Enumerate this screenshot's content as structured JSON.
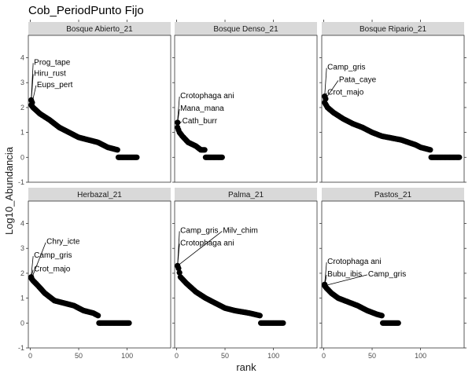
{
  "chart_data": {
    "type": "scatter",
    "title": "Cob_PeriodPunto Fijo",
    "xlabel": "rank",
    "ylabel": "Log10_Abundancia",
    "xlim": [
      -2,
      145
    ],
    "ylim": [
      -1,
      4.9
    ],
    "x_ticks": [
      "0",
      "50",
      "100"
    ],
    "x_tick_values": [
      0,
      50,
      100
    ],
    "y_ticks": [
      "-1",
      "0",
      "1",
      "2",
      "3",
      "4"
    ],
    "y_tick_values": [
      -1,
      0,
      1,
      2,
      3,
      4
    ],
    "point_color": "#000000",
    "panels": [
      {
        "name": "Bosque Abierto_21",
        "n_species": 110,
        "curve": [
          [
            1,
            2.1
          ],
          [
            3,
            2.0
          ],
          [
            10,
            1.75
          ],
          [
            20,
            1.5
          ],
          [
            30,
            1.2
          ],
          [
            40,
            1.0
          ],
          [
            50,
            0.8
          ],
          [
            60,
            0.7
          ],
          [
            70,
            0.6
          ],
          [
            80,
            0.4
          ],
          [
            90,
            0.3
          ],
          [
            91,
            0.0
          ],
          [
            110,
            0.0
          ]
        ],
        "top_points": [
          [
            1,
            2.3
          ],
          [
            2,
            2.2
          ]
        ],
        "labels": [
          {
            "text": "Prog_tape",
            "x": 3,
            "y": 3.85,
            "px": 1,
            "py": 2.3
          },
          {
            "text": "Hiru_rust",
            "x": 3,
            "y": 3.4,
            "px": 1,
            "py": 2.25
          },
          {
            "text": "Eups_pert",
            "x": 6,
            "y": 2.95,
            "px": 2,
            "py": 2.2
          }
        ]
      },
      {
        "name": "Bosque Denso_21",
        "n_species": 47,
        "curve": [
          [
            1,
            1.2
          ],
          [
            3,
            1.0
          ],
          [
            6,
            0.85
          ],
          [
            12,
            0.6
          ],
          [
            20,
            0.45
          ],
          [
            25,
            0.3
          ],
          [
            29,
            0.3
          ],
          [
            30,
            0.0
          ],
          [
            47,
            0.0
          ]
        ],
        "top_points": [
          [
            1,
            1.4
          ]
        ],
        "labels": [
          {
            "text": "Crotophaga ani",
            "x": 3,
            "y": 2.5,
            "px": 1,
            "py": 1.45
          },
          {
            "text": "Mana_mana",
            "x": 3,
            "y": 2.0,
            "px": 1,
            "py": 1.4
          },
          {
            "text": "Cath_burr",
            "x": 5,
            "y": 1.5,
            "px": 2,
            "py": 1.3
          }
        ]
      },
      {
        "name": "Bosque Ripario_21",
        "n_species": 140,
        "curve": [
          [
            1,
            2.2
          ],
          [
            4,
            2.0
          ],
          [
            10,
            1.8
          ],
          [
            20,
            1.55
          ],
          [
            30,
            1.35
          ],
          [
            40,
            1.2
          ],
          [
            50,
            1.0
          ],
          [
            60,
            0.85
          ],
          [
            80,
            0.7
          ],
          [
            95,
            0.5
          ],
          [
            100,
            0.4
          ],
          [
            110,
            0.3
          ],
          [
            111,
            0.0
          ],
          [
            140,
            0.0
          ]
        ],
        "top_points": [
          [
            1,
            2.45
          ],
          [
            2,
            2.35
          ]
        ],
        "labels": [
          {
            "text": "Camp_gris",
            "x": 3,
            "y": 3.65,
            "px": 1,
            "py": 2.45
          },
          {
            "text": "Pata_caye",
            "x": 15,
            "y": 3.15,
            "px": 2,
            "py": 2.35
          },
          {
            "text": "Crot_majo",
            "x": 3,
            "y": 2.65,
            "px": 2,
            "py": 2.3
          }
        ]
      },
      {
        "name": "Herbazal_21",
        "n_species": 102,
        "curve": [
          [
            1,
            1.8
          ],
          [
            3,
            1.7
          ],
          [
            8,
            1.5
          ],
          [
            15,
            1.2
          ],
          [
            25,
            0.9
          ],
          [
            35,
            0.8
          ],
          [
            45,
            0.7
          ],
          [
            55,
            0.5
          ],
          [
            65,
            0.4
          ],
          [
            70,
            0.3
          ],
          [
            71,
            0.0
          ],
          [
            102,
            0.0
          ]
        ],
        "top_points": [
          [
            1,
            1.85
          ]
        ],
        "labels": [
          {
            "text": "Chry_icte",
            "x": 16,
            "y": 3.3,
            "px": 2,
            "py": 1.85
          },
          {
            "text": "Camp_gris",
            "x": 3,
            "y": 2.75,
            "px": 1,
            "py": 1.9
          },
          {
            "text": "Crot_majo",
            "x": 3,
            "y": 2.2,
            "px": 1,
            "py": 1.85
          }
        ]
      },
      {
        "name": "Palma_21",
        "n_species": 110,
        "curve": [
          [
            1,
            2.3
          ],
          [
            2,
            2.2
          ],
          [
            4,
            1.85
          ],
          [
            10,
            1.6
          ],
          [
            20,
            1.25
          ],
          [
            30,
            1.0
          ],
          [
            40,
            0.8
          ],
          [
            50,
            0.6
          ],
          [
            60,
            0.5
          ],
          [
            75,
            0.4
          ],
          [
            86,
            0.3
          ],
          [
            87,
            0.0
          ],
          [
            110,
            0.0
          ]
        ],
        "top_points": [
          [
            1,
            2.3
          ]
        ],
        "labels": [
          {
            "text": "Camp_gris",
            "x": 3,
            "y": 3.75,
            "px": 1,
            "py": 2.3
          },
          {
            "text": "Milv_chim",
            "x": 47,
            "y": 3.75,
            "px": 1,
            "py": 2.3
          },
          {
            "text": "Crotophaga ani",
            "x": 3,
            "y": 3.25,
            "px": 1,
            "py": 2.3
          }
        ]
      },
      {
        "name": "Pastos_21",
        "n_species": 77,
        "curve": [
          [
            1,
            1.5
          ],
          [
            3,
            1.4
          ],
          [
            8,
            1.2
          ],
          [
            15,
            1.0
          ],
          [
            25,
            0.85
          ],
          [
            35,
            0.7
          ],
          [
            45,
            0.5
          ],
          [
            55,
            0.35
          ],
          [
            60,
            0.3
          ],
          [
            61,
            0.0
          ],
          [
            77,
            0.0
          ]
        ],
        "top_points": [
          [
            1,
            1.55
          ]
        ],
        "labels": [
          {
            "text": "Crotophaga ani",
            "x": 3,
            "y": 2.5,
            "px": 1,
            "py": 1.55
          },
          {
            "text": "Bubu_ibis",
            "x": 3,
            "y": 2.0,
            "px": 1,
            "py": 1.5
          },
          {
            "text": "Camp_gris",
            "x": 45,
            "y": 2.0,
            "px": 1,
            "py": 1.5
          }
        ]
      }
    ]
  }
}
